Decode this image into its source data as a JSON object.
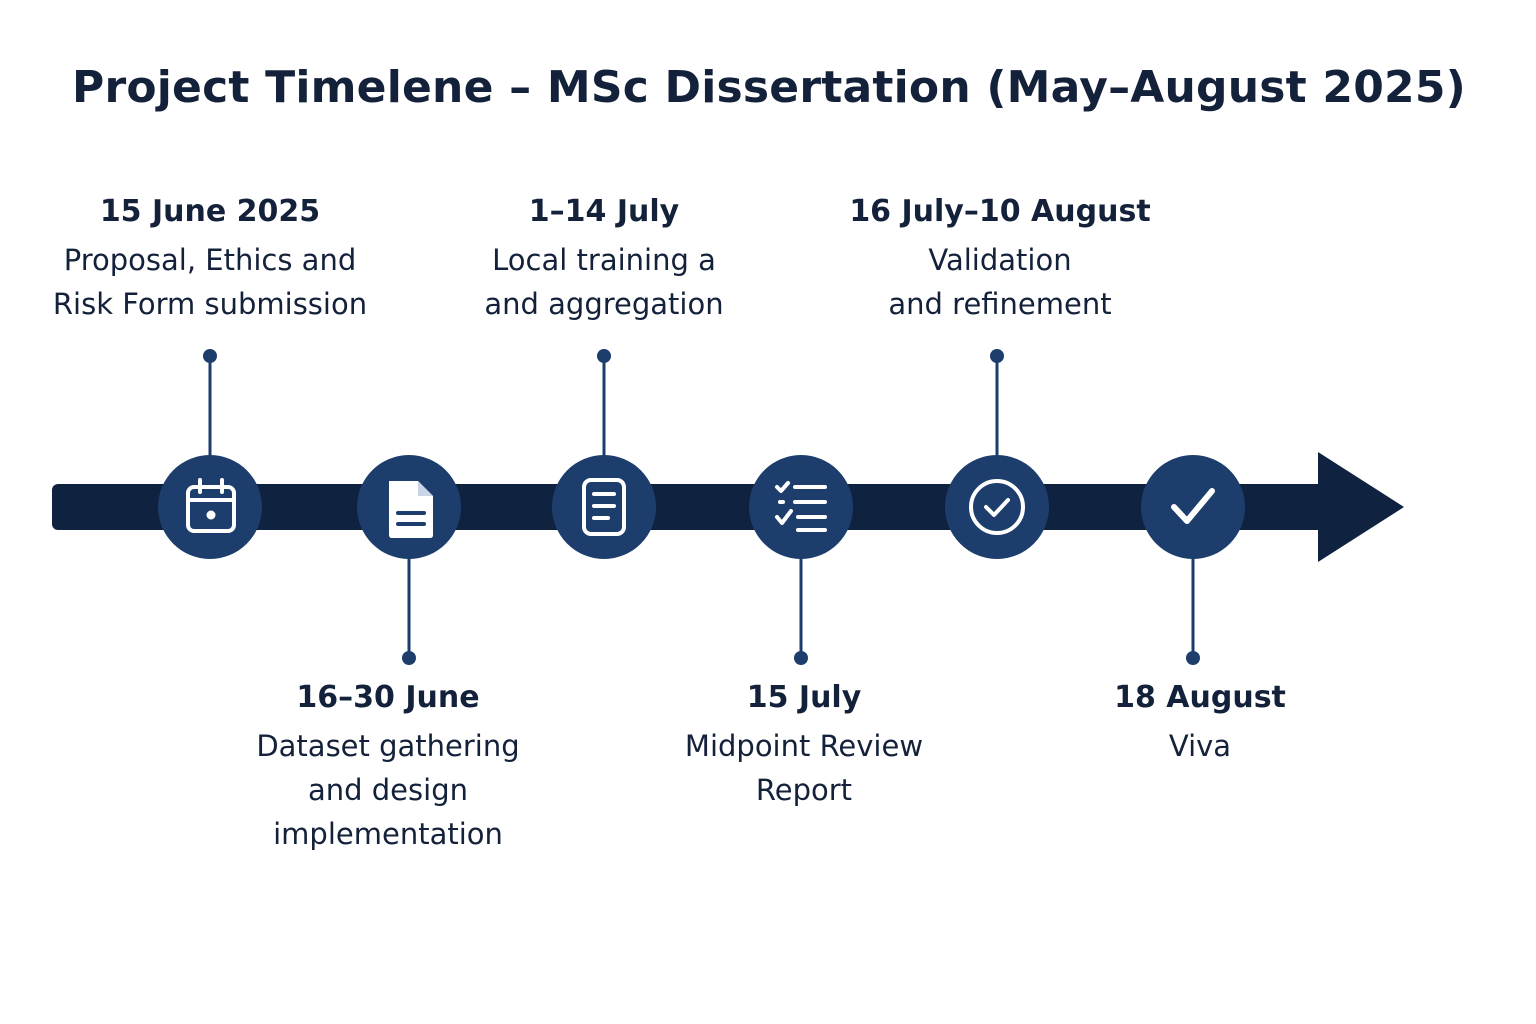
{
  "title": "Project Timelene – MSc Dissertation (May–August 2025)",
  "colors": {
    "bar": "#0f2340",
    "node": "#1d3e6c",
    "icon": "#ffffff",
    "connector": "#1d3e6c",
    "text": "#14213a"
  },
  "milestones": [
    {
      "date": "15 June 2025",
      "desc": [
        "Proposal, Ethics and",
        "Risk Form submission"
      ],
      "icon": "calendar-icon",
      "position": "above"
    },
    {
      "date": "16–30 June",
      "desc": [
        "Dataset gathering",
        "and design",
        "implementation"
      ],
      "icon": "document-icon",
      "position": "below"
    },
    {
      "date": "1–14 July",
      "desc": [
        "Local training a",
        "and aggregation"
      ],
      "icon": "notes-icon",
      "position": "above"
    },
    {
      "date": "15 July",
      "desc": [
        "Midpoint Review",
        "Report"
      ],
      "icon": "checklist-icon",
      "position": "below"
    },
    {
      "date": "16 July–10 August",
      "desc": [
        "Validation",
        "and refinement"
      ],
      "icon": "check-circle-icon",
      "position": "above"
    },
    {
      "date": "18 August",
      "desc": [
        "Viva"
      ],
      "icon": "checkmark-icon",
      "position": "below"
    }
  ]
}
